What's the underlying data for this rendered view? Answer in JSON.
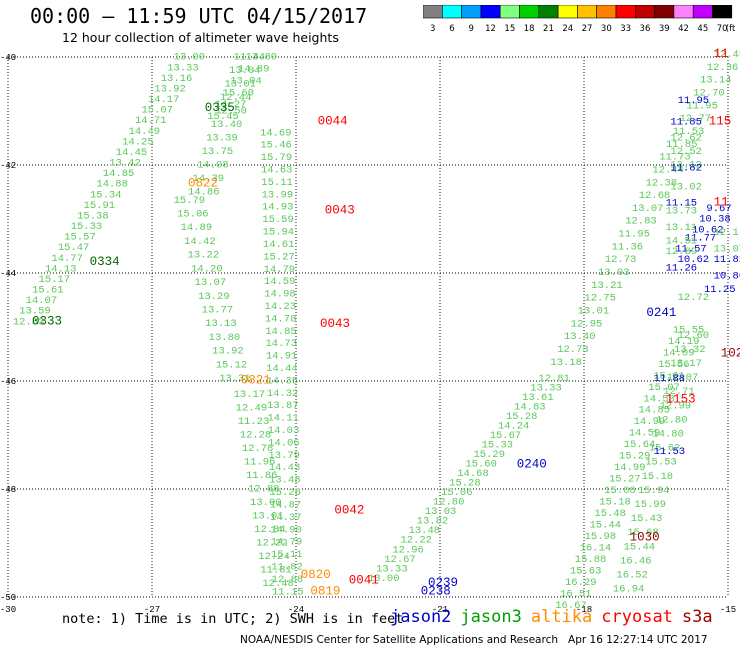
{
  "header": {
    "title": "00:00 – 11:59 UTC 04/15/2017",
    "subtitle": "12 hour collection of altimeter wave heights"
  },
  "colorbar": {
    "labels": [
      "3",
      "6",
      "9",
      "12",
      "15",
      "18",
      "21",
      "24",
      "27",
      "30",
      "33",
      "36",
      "39",
      "42",
      "45",
      "70"
    ],
    "unit": "(ft)",
    "colors": [
      "#808080",
      "#00ffff",
      "#00a0ff",
      "#0000ff",
      "#80ff80",
      "#00d000",
      "#008000",
      "#ffff00",
      "#ffc000",
      "#ff8000",
      "#ff0000",
      "#c00000",
      "#800000",
      "#ff80ff",
      "#c000ff",
      "#000000"
    ]
  },
  "footer": {
    "note": "note: 1) Time is in UTC; 2) SWH is in feet",
    "credit": "NOAA/NESDIS Center for Satellite Applications and Research",
    "timestamp": "Apr 16 12:27:14 UTC 2017"
  },
  "legend": [
    {
      "name": "jason2",
      "color": "#0000cc"
    },
    {
      "name": "jason3",
      "color": "#00a000"
    },
    {
      "name": "altika",
      "color": "#ff8c00"
    },
    {
      "name": "cryosat",
      "color": "#ff0000"
    },
    {
      "name": "s3a",
      "color": "#990000"
    }
  ],
  "map": {
    "lat_labels": [
      "-40",
      "-42",
      "-44",
      "-46",
      "-48",
      "-50"
    ],
    "lon_labels": [
      "-30",
      "-27",
      "-24",
      "-21",
      "-18",
      "-15"
    ],
    "lat_range": [
      -50,
      -40
    ],
    "lon_range": [
      -30,
      -15
    ]
  },
  "colors": {
    "light": "#5ac85a",
    "mid": "#109610",
    "dark": "#006400",
    "blue": "#0000cc",
    "orange": "#ff8c00",
    "red": "#ff0000",
    "maroon": "#990000"
  },
  "pass_times": [
    {
      "text": "0333",
      "color": "dark",
      "lon": -29.5,
      "lat": -44.95
    },
    {
      "text": "0334",
      "color": "dark",
      "lon": -28.3,
      "lat": -43.85
    },
    {
      "text": "0335",
      "color": "dark",
      "lon": -25.9,
      "lat": -41.0
    },
    {
      "text": "0822",
      "color": "orange",
      "lon": -26.25,
      "lat": -42.4
    },
    {
      "text": "0821",
      "color": "orange",
      "lon": -25.15,
      "lat": -46.05
    },
    {
      "text": "0820",
      "color": "orange",
      "lon": -23.9,
      "lat": -49.65
    },
    {
      "text": "0819",
      "color": "orange",
      "lon": -23.7,
      "lat": -49.95
    },
    {
      "text": "0044",
      "color": "red",
      "lon": -23.55,
      "lat": -41.25
    },
    {
      "text": "0043",
      "color": "red",
      "lon": -23.4,
      "lat": -42.9
    },
    {
      "text": "0043",
      "color": "red",
      "lon": -23.5,
      "lat": -45.0
    },
    {
      "text": "0042",
      "color": "red",
      "lon": -23.2,
      "lat": -48.45
    },
    {
      "text": "0041",
      "color": "red",
      "lon": -22.9,
      "lat": -49.75
    },
    {
      "text": "0239",
      "color": "blue",
      "lon": -21.25,
      "lat": -49.8
    },
    {
      "text": "0238",
      "color": "blue",
      "lon": -21.4,
      "lat": -49.95
    },
    {
      "text": "0240",
      "color": "blue",
      "lon": -19.4,
      "lat": -47.6
    },
    {
      "text": "0241",
      "color": "blue",
      "lon": -16.7,
      "lat": -44.8
    },
    {
      "text": "1153",
      "color": "red",
      "lon": -16.3,
      "lat": -46.4
    },
    {
      "text": "1030",
      "color": "maroon",
      "lon": -17.05,
      "lat": -48.95
    },
    {
      "text": "115",
      "color": "red",
      "lon": -15.4,
      "lat": -41.25
    },
    {
      "text": "102",
      "color": "maroon",
      "lon": -15.15,
      "lat": -45.55
    },
    {
      "text": "11",
      "color": "red",
      "lon": -15.3,
      "lat": -40.0
    },
    {
      "text": "11",
      "color": "red",
      "lon": -15.3,
      "lat": -42.75
    }
  ],
  "tracks": [
    {
      "color": "light",
      "start": [
        -29.9,
        -44.95
      ],
      "end": [
        -26.55,
        -40.05
      ],
      "values": [
        "12.83",
        "13.59",
        "14.07",
        "15.61",
        "15.17",
        "14.13",
        "14.77",
        "15.47",
        "15.57",
        "15.33",
        "15.38",
        "15.91",
        "15.34",
        "14.88",
        "14.85",
        "13.42",
        "14.45",
        "14.25",
        "14.49",
        "14.71",
        "15.07",
        "14.17",
        "13.92",
        "13.16",
        "13.33",
        "13.00"
      ]
    },
    {
      "color": "light",
      "start": [
        -26.25,
        -42.55
      ],
      "end": [
        -25.3,
        -40.05
      ],
      "values": [
        "14.86",
        "14.39",
        "14.08",
        "13.75",
        "13.39",
        "13.40",
        "12.50",
        "12.44",
        "13.01",
        "13.04",
        "11.44"
      ]
    },
    {
      "color": "light",
      "start": [
        -25.05,
        -40.05
      ],
      "end": [
        -25.85,
        -41.15
      ],
      "values": [
        "13.80",
        "14.89",
        "13.04",
        "15.60",
        "14.27",
        "15.45"
      ]
    },
    {
      "color": "light",
      "start": [
        -24.75,
        -41.45
      ],
      "end": [
        -24.5,
        -49.95
      ],
      "values": [
        "14.69",
        "15.46",
        "15.79",
        "14.63",
        "15.11",
        "13.99",
        "14.93",
        "15.59",
        "15.94",
        "14.61",
        "15.27",
        "14.79",
        "14.59",
        "14.98",
        "14.23",
        "14.78",
        "14.85",
        "14.73",
        "14.91",
        "14.44",
        "14.35",
        "14.32",
        "13.87",
        "14.11",
        "14.03",
        "14.06",
        "13.79",
        "14.43",
        "13.48",
        "15.25",
        "14.87",
        "14.37",
        "14.90",
        "14.79",
        "15.11",
        "11.82",
        "12.88",
        "11.15"
      ]
    },
    {
      "color": "light",
      "start": [
        -26.55,
        -42.7
      ],
      "end": [
        -25.6,
        -46.0
      ],
      "values": [
        "15.79",
        "15.06",
        "14.89",
        "14.42",
        "13.22",
        "14.20",
        "13.07",
        "13.29",
        "13.77",
        "13.13",
        "13.80",
        "13.92",
        "15.12",
        "13.31"
      ]
    },
    {
      "color": "light",
      "start": [
        -25.3,
        -46.3
      ],
      "end": [
        -24.7,
        -49.8
      ],
      "values": [
        "13.17",
        "12.49",
        "11.23",
        "12.28",
        "12.78",
        "11.96",
        "11.86",
        "12.88",
        "13.00",
        "13.01",
        "12.84",
        "12.22",
        "12.24",
        "11.81",
        "12.48"
      ]
    },
    {
      "color": "light",
      "start": [
        -22.5,
        -49.7
      ],
      "end": [
        -18.95,
        -46.0
      ],
      "values": [
        "13.00",
        "13.33",
        "12.67",
        "12.96",
        "12.22",
        "13.48",
        "13.82",
        "13.03",
        "12.80",
        "15.06",
        "15.28",
        "14.68",
        "15.60",
        "15.29",
        "15.33",
        "15.67",
        "14.24",
        "15.28",
        "14.83",
        "13.61",
        "13.33",
        "12.81"
      ]
    },
    {
      "color": "light",
      "start": [
        -18.7,
        -45.7
      ],
      "end": [
        -15.3,
        -40.0
      ],
      "values": [
        "13.18",
        "12.73",
        "13.40",
        "12.95",
        "13.01",
        "12.75",
        "13.21",
        "13.03",
        "12.73",
        "11.36",
        "11.95",
        "12.83",
        "13.07",
        "12.68",
        "12.38",
        "12.44",
        "11.73",
        "11.85",
        "11.53",
        "12.77",
        "11.95",
        "12.70",
        "13.14",
        "12.36",
        "12.45"
      ]
    },
    {
      "color": "light",
      "start": [
        -18.6,
        -50.2
      ],
      "end": [
        -16.15,
        -45.1
      ],
      "values": [
        "16.67",
        "16.51",
        "16.29",
        "15.63",
        "15.88",
        "16.14",
        "15.98",
        "15.44",
        "15.48",
        "15.18",
        "15.08",
        "15.27",
        "14.99",
        "15.29",
        "15.64",
        "14.59",
        "14.99",
        "14.85",
        "14.58",
        "15.07",
        "15.01",
        "15.56",
        "14.09",
        "14.19",
        "15.55"
      ]
    },
    {
      "color": "light",
      "start": [
        -17.4,
        -49.9
      ],
      "end": [
        -16.05,
        -45.2
      ],
      "values": [
        "16.94",
        "16.52",
        "16.46",
        "15.44",
        "15.68",
        "15.43",
        "15.99",
        "15.94",
        "15.18",
        "15.53",
        "15.62",
        "14.80",
        "12.80",
        "12.99",
        "12.71",
        "12.07",
        "13.17",
        "13.32",
        "12.60"
      ]
    }
  ],
  "track_points": [
    {
      "text": "13.12",
      "color": "light",
      "lon": -16.2,
      "lat": -42.05
    },
    {
      "text": "13.02",
      "color": "light",
      "lon": -16.2,
      "lat": -42.45
    },
    {
      "text": "12.52",
      "color": "light",
      "lon": -16.2,
      "lat": -41.8
    },
    {
      "text": "12.62",
      "color": "light",
      "lon": -16.2,
      "lat": -41.55
    },
    {
      "text": "11.82",
      "color": "blue",
      "lon": -16.2,
      "lat": -42.1
    },
    {
      "text": "11.85",
      "color": "blue",
      "lon": -16.2,
      "lat": -41.25
    },
    {
      "text": "11.95",
      "color": "blue",
      "lon": -16.05,
      "lat": -40.85
    },
    {
      "text": "11.15",
      "color": "blue",
      "lon": -16.3,
      "lat": -42.75
    },
    {
      "text": "11.77",
      "color": "blue",
      "lon": -15.9,
      "lat": -43.4
    },
    {
      "text": "10.62",
      "color": "blue",
      "lon": -15.75,
      "lat": -43.25
    },
    {
      "text": "10.38",
      "color": "blue",
      "lon": -15.6,
      "lat": -43.05
    },
    {
      "text": "9.67",
      "color": "blue",
      "lon": -15.45,
      "lat": -42.85
    },
    {
      "text": "11.57",
      "color": "blue",
      "lon": -16.1,
      "lat": -43.6
    },
    {
      "text": "10.62",
      "color": "blue",
      "lon": -16.05,
      "lat": -43.8
    },
    {
      "text": "11.82",
      "color": "blue",
      "lon": -15.3,
      "lat": -43.8
    },
    {
      "text": "10.86",
      "color": "blue",
      "lon": -15.3,
      "lat": -44.1
    },
    {
      "text": "11.25",
      "color": "blue",
      "lon": -15.5,
      "lat": -44.35
    },
    {
      "text": "11.26",
      "color": "blue",
      "lon": -16.3,
      "lat": -43.95
    },
    {
      "text": "13.73",
      "color": "light",
      "lon": -16.3,
      "lat": -42.9
    },
    {
      "text": "13.11",
      "color": "light",
      "lon": -16.3,
      "lat": -43.2
    },
    {
      "text": "14.51",
      "color": "light",
      "lon": -16.3,
      "lat": -43.45
    },
    {
      "text": "12.89",
      "color": "light",
      "lon": -16.3,
      "lat": -43.65
    },
    {
      "text": "12.72",
      "color": "light",
      "lon": -16.05,
      "lat": -44.5
    },
    {
      "text": "13.07",
      "color": "light",
      "lon": -15.3,
      "lat": -43.6
    },
    {
      "text": "12.1",
      "color": "light",
      "lon": -15.3,
      "lat": -43.3
    },
    {
      "text": "11.53",
      "color": "blue",
      "lon": -16.55,
      "lat": -47.35
    },
    {
      "text": "11.88",
      "color": "blue",
      "lon": -16.55,
      "lat": -46.0
    }
  ]
}
